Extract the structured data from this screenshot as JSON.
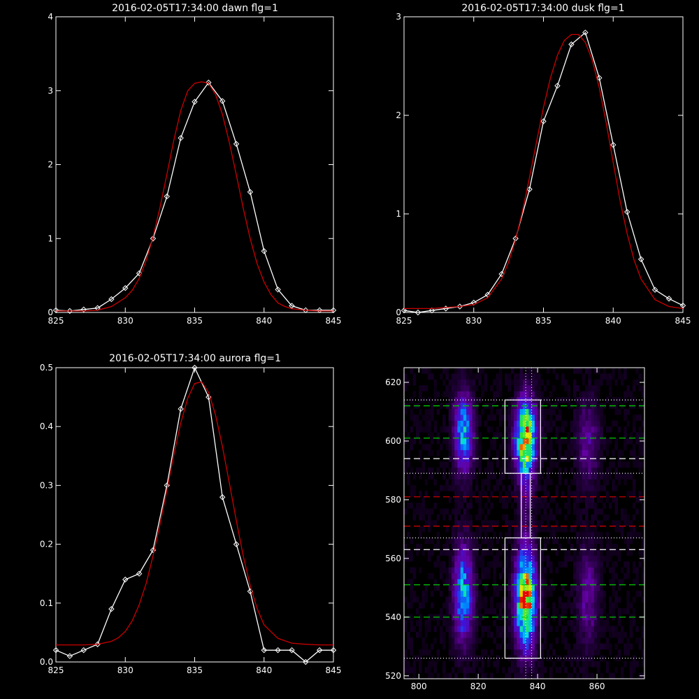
{
  "chart_data": [
    {
      "type": "line",
      "title": "2016-02-05T17:34:00 dawn flg=1",
      "xlim": [
        825,
        845
      ],
      "ylim": [
        0,
        4
      ],
      "xticks": [
        825,
        830,
        835,
        840,
        845
      ],
      "yticks": [
        0,
        1,
        2,
        3,
        4
      ],
      "series": [
        {
          "color": "#ffffff",
          "marker": "diamond",
          "x": [
            825,
            826,
            827,
            828,
            829,
            830,
            831,
            832,
            833,
            834,
            835,
            836,
            837,
            838,
            839,
            840,
            841,
            842,
            843,
            844,
            845
          ],
          "y": [
            0.03,
            0.02,
            0.04,
            0.06,
            0.18,
            0.33,
            0.53,
            1.0,
            1.57,
            2.36,
            2.85,
            3.11,
            2.86,
            2.28,
            1.63,
            0.83,
            0.31,
            0.09,
            0.03,
            0.03,
            0.03
          ]
        },
        {
          "color": "#cc0000",
          "marker": "none",
          "x": [
            825,
            826,
            827,
            828,
            829,
            830,
            830.5,
            831,
            831.5,
            832,
            832.5,
            833,
            833.5,
            834,
            834.5,
            835,
            835.5,
            836,
            836.5,
            837,
            837.5,
            838,
            838.5,
            839,
            839.5,
            840,
            840.5,
            841,
            841.5,
            842,
            843,
            844,
            845
          ],
          "y": [
            0.02,
            0.02,
            0.02,
            0.03,
            0.08,
            0.2,
            0.3,
            0.46,
            0.7,
            1.02,
            1.42,
            1.87,
            2.33,
            2.73,
            3.0,
            3.1,
            3.12,
            3.1,
            2.95,
            2.68,
            2.3,
            1.86,
            1.41,
            1.0,
            0.66,
            0.41,
            0.24,
            0.13,
            0.08,
            0.05,
            0.03,
            0.02,
            0.02
          ]
        }
      ]
    },
    {
      "type": "line",
      "title": "2016-02-05T17:34:00 dusk flg=1",
      "xlim": [
        825,
        845
      ],
      "ylim": [
        0,
        3
      ],
      "xticks": [
        825,
        830,
        835,
        840,
        845
      ],
      "yticks": [
        0,
        1,
        2,
        3
      ],
      "series": [
        {
          "color": "#ffffff",
          "marker": "diamond",
          "x": [
            825,
            826,
            827,
            828,
            829,
            830,
            831,
            832,
            833,
            834,
            835,
            836,
            837,
            838,
            839,
            840,
            841,
            842,
            843,
            844,
            845
          ],
          "y": [
            0.02,
            0.0,
            0.02,
            0.04,
            0.06,
            0.1,
            0.18,
            0.39,
            0.75,
            1.25,
            1.94,
            2.3,
            2.72,
            2.84,
            2.38,
            1.7,
            1.02,
            0.54,
            0.23,
            0.14,
            0.07
          ]
        },
        {
          "color": "#cc0000",
          "marker": "none",
          "x": [
            825,
            826,
            827,
            828,
            829,
            830,
            831,
            832,
            832.5,
            833,
            833.5,
            834,
            834.5,
            835,
            835.5,
            836,
            836.5,
            837,
            837.5,
            838,
            838.5,
            839,
            839.5,
            840,
            840.5,
            841,
            841.5,
            842,
            843,
            844,
            845
          ],
          "y": [
            0.04,
            0.04,
            0.04,
            0.05,
            0.06,
            0.08,
            0.15,
            0.34,
            0.51,
            0.74,
            1.03,
            1.37,
            1.73,
            2.08,
            2.38,
            2.61,
            2.76,
            2.82,
            2.82,
            2.74,
            2.56,
            2.28,
            1.92,
            1.52,
            1.13,
            0.8,
            0.53,
            0.34,
            0.13,
            0.06,
            0.04
          ]
        }
      ]
    },
    {
      "type": "line",
      "title": "2016-02-05T17:34:00 aurora flg=1",
      "xlim": [
        825,
        845
      ],
      "ylim": [
        0,
        0.5
      ],
      "xticks": [
        825,
        830,
        835,
        840,
        845
      ],
      "yticks": [
        0.0,
        0.1,
        0.2,
        0.3,
        0.4,
        0.5
      ],
      "ytick_labels": [
        "0.0",
        "0.1",
        "0.2",
        "0.3",
        "0.4",
        "0.5"
      ],
      "series": [
        {
          "color": "#ffffff",
          "marker": "diamond",
          "x": [
            825,
            826,
            827,
            828,
            829,
            830,
            831,
            832,
            833,
            834,
            835,
            836,
            837,
            838,
            839,
            840,
            841,
            842,
            843,
            844,
            845
          ],
          "y": [
            0.02,
            0.01,
            0.02,
            0.03,
            0.09,
            0.14,
            0.15,
            0.19,
            0.3,
            0.43,
            0.5,
            0.45,
            0.28,
            0.2,
            0.12,
            0.02,
            0.02,
            0.02,
            0.0,
            0.02,
            0.02
          ]
        },
        {
          "color": "#cc0000",
          "marker": "none",
          "x": [
            825,
            826,
            827,
            828,
            829,
            829.5,
            830,
            830.5,
            831,
            831.5,
            832,
            832.5,
            833,
            833.5,
            834,
            834.5,
            835,
            835.5,
            836,
            836.5,
            837,
            837.5,
            838,
            838.5,
            839,
            839.5,
            840,
            841,
            842,
            843,
            844,
            845
          ],
          "y": [
            0.029,
            0.029,
            0.029,
            0.03,
            0.035,
            0.041,
            0.052,
            0.07,
            0.097,
            0.133,
            0.18,
            0.234,
            0.292,
            0.352,
            0.406,
            0.448,
            0.473,
            0.476,
            0.458,
            0.42,
            0.366,
            0.304,
            0.24,
            0.18,
            0.13,
            0.091,
            0.063,
            0.04,
            0.032,
            0.03,
            0.029,
            0.029
          ]
        }
      ]
    },
    {
      "type": "heatmap",
      "xlim": [
        795,
        876
      ],
      "ylim": [
        519,
        625
      ],
      "xticks": [
        800,
        820,
        840,
        860
      ],
      "yticks": [
        520,
        540,
        560,
        580,
        600,
        620
      ],
      "blobs": [
        {
          "x": 815,
          "y": 603,
          "sx": 2.2,
          "sy": 9,
          "amp": 0.55
        },
        {
          "x": 815,
          "y": 548,
          "sx": 2.2,
          "sy": 11,
          "amp": 0.55
        },
        {
          "x": 836,
          "y": 601,
          "sx": 2.4,
          "sy": 9,
          "amp": 0.9
        },
        {
          "x": 836,
          "y": 546,
          "sx": 2.4,
          "sy": 11,
          "amp": 0.95
        },
        {
          "x": 836,
          "y": 582,
          "sx": 1.5,
          "sy": 14,
          "amp": 0.12
        },
        {
          "x": 857,
          "y": 600,
          "sx": 2.5,
          "sy": 10,
          "amp": 0.22
        },
        {
          "x": 857,
          "y": 547,
          "sx": 2.5,
          "sy": 12,
          "amp": 0.22
        }
      ],
      "hlines": [
        {
          "y": 612,
          "color": "#00cc00",
          "style": "dashed"
        },
        {
          "y": 601,
          "color": "#00cc00",
          "style": "dashed"
        },
        {
          "y": 594,
          "color": "#ffffff",
          "style": "dashed"
        },
        {
          "y": 581,
          "color": "#cc0000",
          "style": "dashed"
        },
        {
          "y": 571,
          "color": "#cc0000",
          "style": "dashed"
        },
        {
          "y": 563,
          "color": "#ffffff",
          "style": "dashed"
        },
        {
          "y": 551,
          "color": "#00cc00",
          "style": "dashed"
        },
        {
          "y": 540,
          "color": "#00cc00",
          "style": "dashed"
        },
        {
          "y": 614,
          "color": "#ffffff",
          "style": "dotted"
        },
        {
          "y": 589,
          "color": "#ffffff",
          "style": "dotted"
        },
        {
          "y": 567,
          "color": "#ffffff",
          "style": "dotted"
        },
        {
          "y": 526,
          "color": "#ffffff",
          "style": "dotted"
        }
      ],
      "vlines": [
        {
          "x": 836,
          "color": "#ffffff",
          "style": "dotted"
        },
        {
          "x": 838,
          "color": "#ffffff",
          "style": "dotted"
        }
      ],
      "boxes": [
        {
          "x0": 829,
          "x1": 841,
          "y0": 589,
          "y1": 614
        },
        {
          "x0": 829,
          "x1": 841,
          "y0": 526,
          "y1": 567
        },
        {
          "x0": 834.5,
          "x1": 837.5,
          "y0": 567,
          "y1": 589
        }
      ]
    }
  ]
}
